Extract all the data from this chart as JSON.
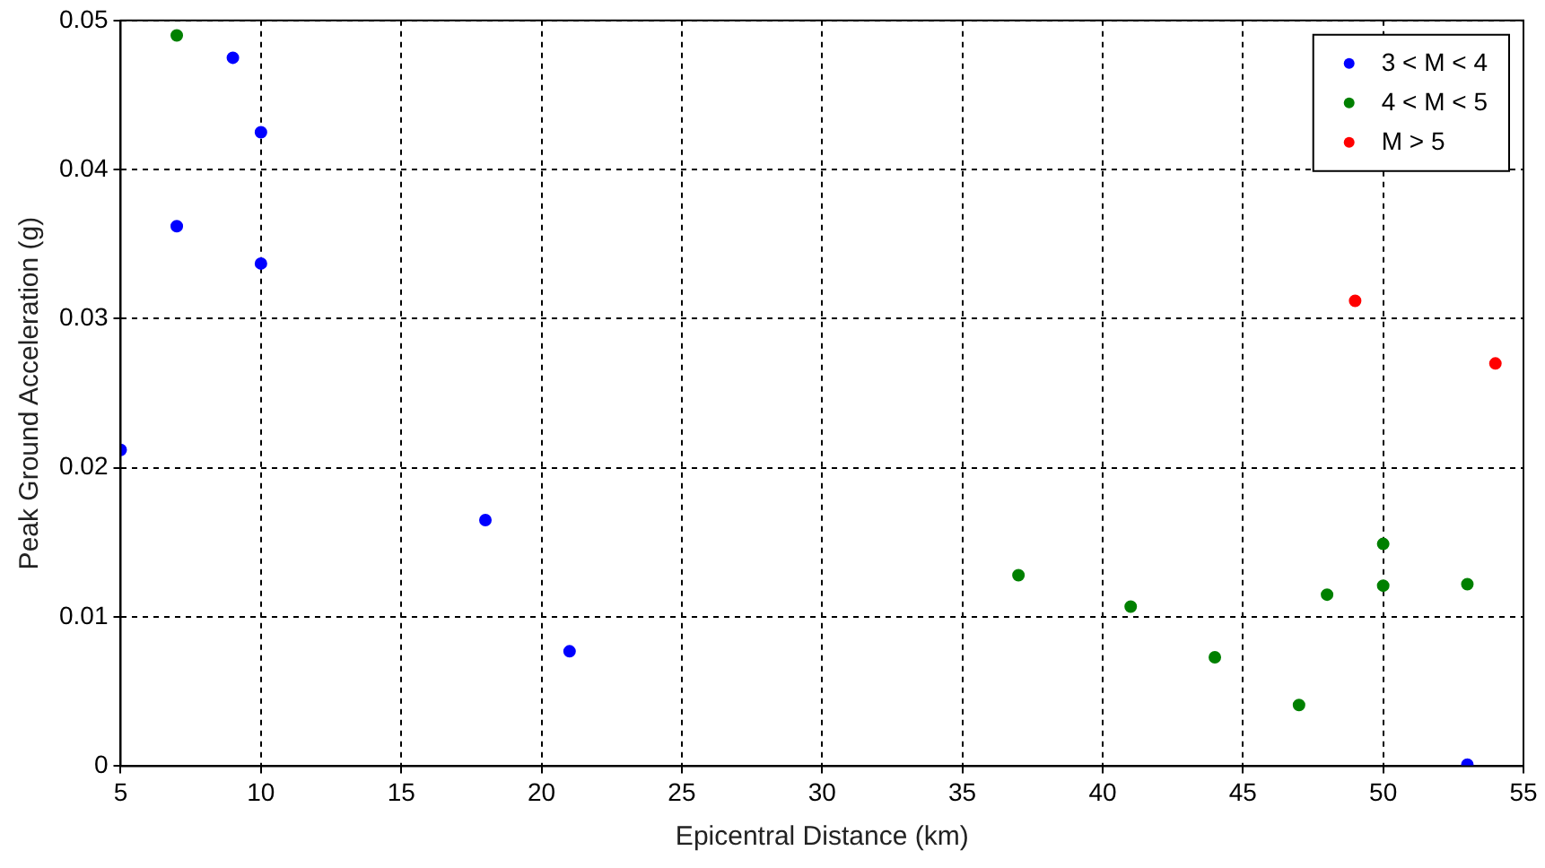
{
  "chart_data": {
    "type": "scatter",
    "xlabel": "Epicentral Distance (km)",
    "ylabel": "Peak Ground Acceleration (g)",
    "series": [
      {
        "name": "3 < M < 4",
        "color": "#0000ff",
        "x": [
          5,
          7,
          9,
          10,
          10,
          18,
          21,
          53
        ],
        "values": [
          0.0212,
          0.0362,
          0.0475,
          0.0425,
          0.0337,
          0.0165,
          0.0077,
          0.0001
        ]
      },
      {
        "name": "4 < M < 5",
        "color": "#008000",
        "x": [
          7,
          37,
          41,
          44,
          47,
          48,
          50,
          50,
          53
        ],
        "values": [
          0.049,
          0.0128,
          0.0107,
          0.0073,
          0.0041,
          0.0115,
          0.0149,
          0.0121,
          0.0122
        ]
      },
      {
        "name": "M > 5",
        "color": "#ff0000",
        "x": [
          49,
          54
        ],
        "values": [
          0.0312,
          0.027
        ]
      }
    ],
    "xlim": [
      5,
      55
    ],
    "xticks": [
      5,
      10,
      15,
      20,
      25,
      30,
      35,
      40,
      45,
      50,
      55
    ],
    "ylim": [
      0,
      0.05
    ],
    "yticks": [
      0,
      0.01,
      0.02,
      0.03,
      0.04,
      0.05
    ],
    "grid": true,
    "legend": "top right",
    "marker": "circle"
  }
}
